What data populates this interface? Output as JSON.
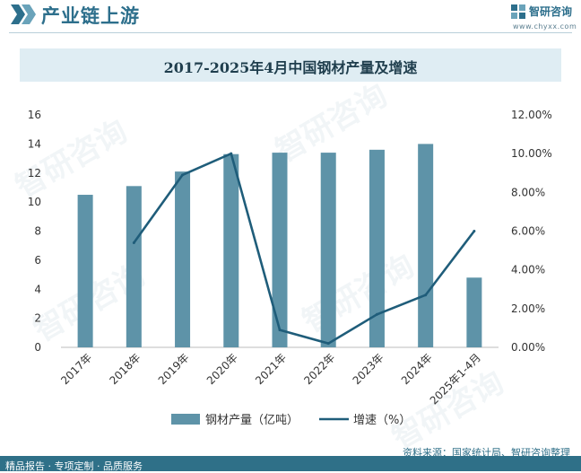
{
  "header": {
    "title": "产业链上游",
    "logo_name": "智研咨询",
    "logo_url": "www.chyxx.com"
  },
  "chart_data": {
    "type": "bar",
    "title": "2017-2025年4月中国钢材产量及增速",
    "categories": [
      "2017年",
      "2018年",
      "2019年",
      "2020年",
      "2021年",
      "2022年",
      "2023年",
      "2024年",
      "2025年1-4月"
    ],
    "series": [
      {
        "name": "钢材产量（亿吨）",
        "type": "bar",
        "axis": "left",
        "values": [
          10.5,
          11.1,
          12.1,
          13.3,
          13.4,
          13.4,
          13.6,
          14.0,
          4.8
        ]
      },
      {
        "name": "增速（%）",
        "type": "line",
        "axis": "right",
        "values": [
          null,
          5.4,
          8.9,
          10.0,
          0.9,
          0.2,
          1.7,
          2.7,
          6.0
        ]
      }
    ],
    "y_left": {
      "min": 0,
      "max": 16,
      "ticks": [
        "0",
        "2",
        "4",
        "6",
        "8",
        "10",
        "12",
        "14",
        "16"
      ]
    },
    "y_right": {
      "min": 0,
      "max": 12,
      "ticks": [
        "0.00%",
        "2.00%",
        "4.00%",
        "6.00%",
        "8.00%",
        "10.00%",
        "12.00%"
      ]
    },
    "grid": false,
    "legend_position": "bottom",
    "colors": {
      "bar": "#5e93a8",
      "line": "#1f5d7a"
    }
  },
  "footer": {
    "tagline": "精品报告 · 专项定制 · 品质服务",
    "source": "资料来源：国家统计局、智研咨询整理"
  }
}
